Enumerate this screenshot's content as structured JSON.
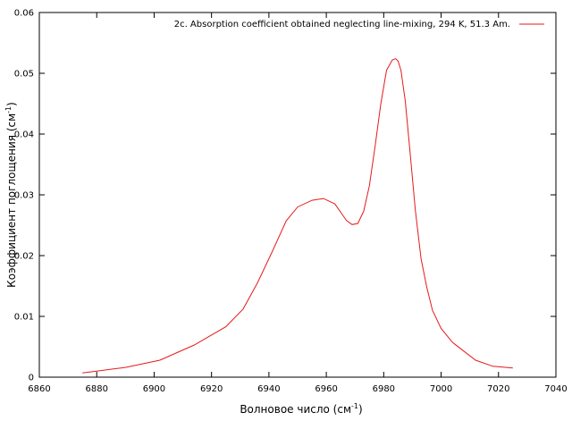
{
  "chart_data": {
    "type": "line",
    "xlabel_main": "Волновое число (см",
    "xlabel_sup": "-1",
    "xlabel_end": ")",
    "ylabel_main": "Коэффициент поглощения (см",
    "ylabel_sup": "-1",
    "ylabel_end": ")",
    "xlim": [
      6860,
      7040
    ],
    "ylim": [
      0,
      0.06
    ],
    "xticks": [
      "6860",
      "6880",
      "6900",
      "6920",
      "6940",
      "6960",
      "6980",
      "7000",
      "7020",
      "7040"
    ],
    "yticks": [
      "0",
      "0.01",
      "0.02",
      "0.03",
      "0.04",
      "0.05",
      "0.06"
    ],
    "grid": false,
    "legend_position": "top-right",
    "series": [
      {
        "name": "2c. Absorption coefficient obtained neglecting line-mixing, 294 K, 51.3 Am.",
        "color": "#e41a1c",
        "x": [
          6875,
          6880,
          6890,
          6902,
          6914,
          6925,
          6931,
          6936,
          6941,
          6946,
          6950,
          6955,
          6959,
          6963,
          6967,
          6969,
          6971,
          6973,
          6975,
          6977,
          6979,
          6981,
          6983,
          6984.2,
          6985,
          6986,
          6987.5,
          6989,
          6991,
          6993,
          6995,
          6997,
          7000,
          7004,
          7012,
          7018,
          7025
        ],
        "y": [
          0.0007,
          0.001,
          0.0016,
          0.0028,
          0.0053,
          0.0083,
          0.0112,
          0.0155,
          0.0205,
          0.0257,
          0.028,
          0.0291,
          0.0294,
          0.0285,
          0.0258,
          0.0251,
          0.0253,
          0.0273,
          0.0315,
          0.038,
          0.045,
          0.0505,
          0.0522,
          0.0524,
          0.052,
          0.0505,
          0.0455,
          0.038,
          0.0275,
          0.0195,
          0.0148,
          0.011,
          0.008,
          0.0057,
          0.0028,
          0.0018,
          0.0015
        ]
      }
    ]
  }
}
